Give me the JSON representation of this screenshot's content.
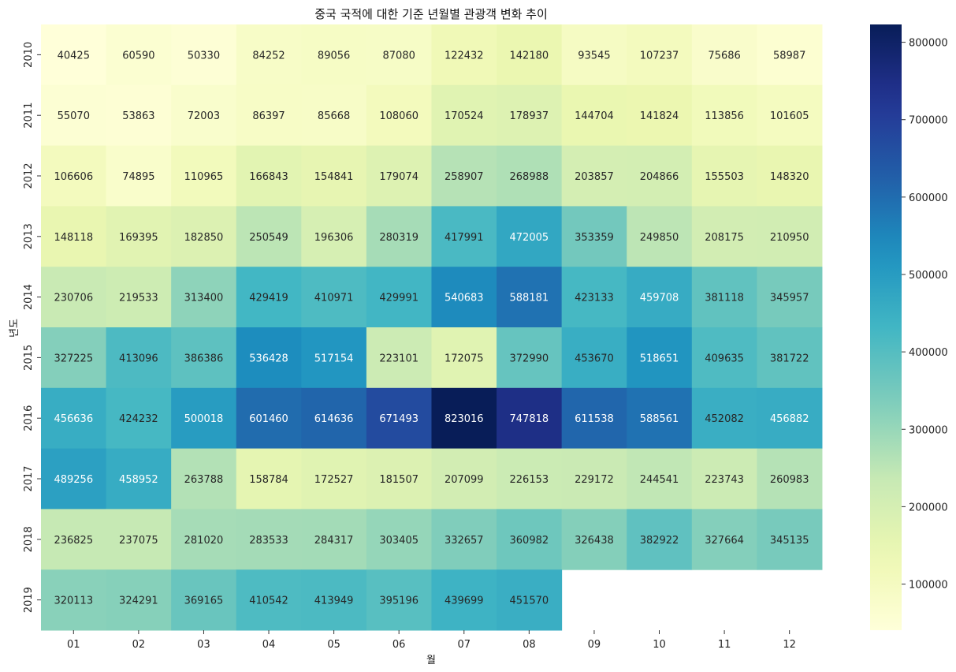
{
  "chart_data": {
    "type": "heatmap",
    "title": "중국 국적에 대한 기준 년월별 관광객 변화 추이",
    "xlabel": "월",
    "ylabel": "년도",
    "x": [
      "01",
      "02",
      "03",
      "04",
      "05",
      "06",
      "07",
      "08",
      "09",
      "10",
      "11",
      "12"
    ],
    "y": [
      "2010",
      "2011",
      "2012",
      "2013",
      "2014",
      "2015",
      "2016",
      "2017",
      "2018",
      "2019"
    ],
    "values": [
      [
        40425,
        60590,
        50330,
        84252,
        89056,
        87080,
        122432,
        142180,
        93545,
        107237,
        75686,
        58987
      ],
      [
        55070,
        53863,
        72003,
        86397,
        85668,
        108060,
        170524,
        178937,
        144704,
        141824,
        113856,
        101605
      ],
      [
        106606,
        74895,
        110965,
        166843,
        154841,
        179074,
        258907,
        268988,
        203857,
        204866,
        155503,
        148320
      ],
      [
        148118,
        169395,
        182850,
        250549,
        196306,
        280319,
        417991,
        472005,
        353359,
        249850,
        208175,
        210950
      ],
      [
        230706,
        219533,
        313400,
        429419,
        410971,
        429991,
        540683,
        588181,
        423133,
        459708,
        381118,
        345957
      ],
      [
        327225,
        413096,
        386386,
        536428,
        517154,
        223101,
        172075,
        372990,
        453670,
        518651,
        409635,
        381722
      ],
      [
        456636,
        424232,
        500018,
        601460,
        614636,
        671493,
        823016,
        747818,
        611538,
        588561,
        452082,
        456882
      ],
      [
        489256,
        458952,
        263788,
        158784,
        172527,
        181507,
        207099,
        226153,
        229172,
        244541,
        223743,
        260983
      ],
      [
        236825,
        237075,
        281020,
        283533,
        284317,
        303405,
        332657,
        360982,
        326438,
        382922,
        327664,
        345135
      ],
      [
        320113,
        324291,
        369165,
        410542,
        413949,
        395196,
        439699,
        451570,
        null,
        null,
        null,
        null
      ]
    ],
    "colorbar": {
      "colormap": "YlGnBu",
      "min": 40425,
      "max": 823016,
      "ticks": [
        "100000",
        "200000",
        "300000",
        "400000",
        "500000",
        "600000",
        "700000",
        "800000"
      ]
    }
  }
}
